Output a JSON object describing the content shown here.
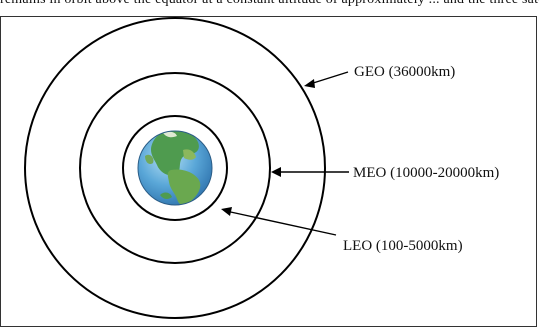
{
  "top_cut_text": "remains in orbit above the equator at a constant altitude of approximately ... and the three satellite orbits in the diagram ...",
  "orbits": [
    {
      "label": "GEO (36000km)"
    },
    {
      "label": "MEO (10000-20000km)"
    },
    {
      "label": "LEO (100-5000km)"
    }
  ],
  "colors": {
    "line": "#000000",
    "ocean": "#5aa7d8",
    "land": "#4f9b4f"
  }
}
